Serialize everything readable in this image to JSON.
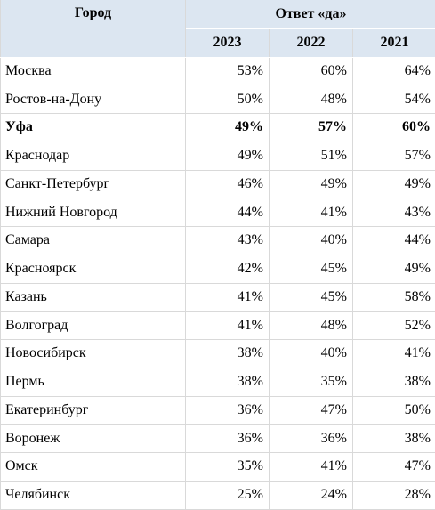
{
  "table": {
    "city_header": "Город",
    "answer_header": "Ответ «да»",
    "years": [
      "2023",
      "2022",
      "2021"
    ],
    "rows": [
      {
        "city": "Москва",
        "values": [
          "53%",
          "60%",
          "64%"
        ]
      },
      {
        "city": "Ростов-на-Дону",
        "values": [
          "50%",
          "48%",
          "54%"
        ]
      },
      {
        "city": "Уфа",
        "values": [
          "49%",
          "57%",
          "60%"
        ],
        "bold": true
      },
      {
        "city": "Краснодар",
        "values": [
          "49%",
          "51%",
          "57%"
        ]
      },
      {
        "city": "Санкт-Петербург",
        "values": [
          "46%",
          "49%",
          "49%"
        ]
      },
      {
        "city": "Нижний Новгород",
        "values": [
          "44%",
          "41%",
          "43%"
        ]
      },
      {
        "city": "Самара",
        "values": [
          "43%",
          "40%",
          "44%"
        ]
      },
      {
        "city": "Красноярск",
        "values": [
          "42%",
          "45%",
          "49%"
        ]
      },
      {
        "city": "Казань",
        "values": [
          "41%",
          "45%",
          "58%"
        ]
      },
      {
        "city": "Волгоград",
        "values": [
          "41%",
          "48%",
          "52%"
        ]
      },
      {
        "city": "Новосибирск",
        "values": [
          "38%",
          "40%",
          "41%"
        ]
      },
      {
        "city": "Пермь",
        "values": [
          "38%",
          "35%",
          "38%"
        ]
      },
      {
        "city": "Екатеринбург",
        "values": [
          "36%",
          "47%",
          "50%"
        ]
      },
      {
        "city": "Воронеж",
        "values": [
          "36%",
          "36%",
          "38%"
        ]
      },
      {
        "city": "Омск",
        "values": [
          "35%",
          "41%",
          "47%"
        ]
      },
      {
        "city": "Челябинск",
        "values": [
          "25%",
          "24%",
          "28%"
        ]
      }
    ]
  }
}
